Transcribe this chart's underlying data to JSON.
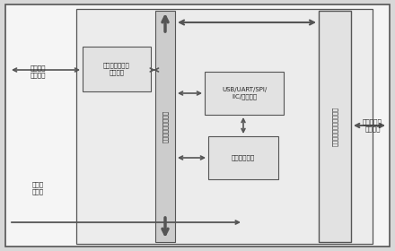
{
  "bg_color": "#d8d8d8",
  "outer_bg": "#f5f5f5",
  "inner_bg": "#ececec",
  "box_fill": "#e2e2e2",
  "vbus_fill": "#cccccc",
  "line_color": "#555555",
  "arrow_color": "#555555",
  "font_color": "#222222",
  "labels": {
    "left_data": "主接口外\n部数据线",
    "left_mode": "主接口\n模式线",
    "ext_trans": "主接口模块外部\n收发逻辑",
    "vbus": "主接口模块内部总线",
    "usb": "USB/UART/SPI/\nIIC/串口逻辑",
    "ctrl": "主接口控制器",
    "right_tall": "主接口模块内部收发逻辑",
    "right_bus": "主接口内部\n数据总线"
  },
  "dpi": 100,
  "figw": 4.4,
  "figh": 2.8
}
